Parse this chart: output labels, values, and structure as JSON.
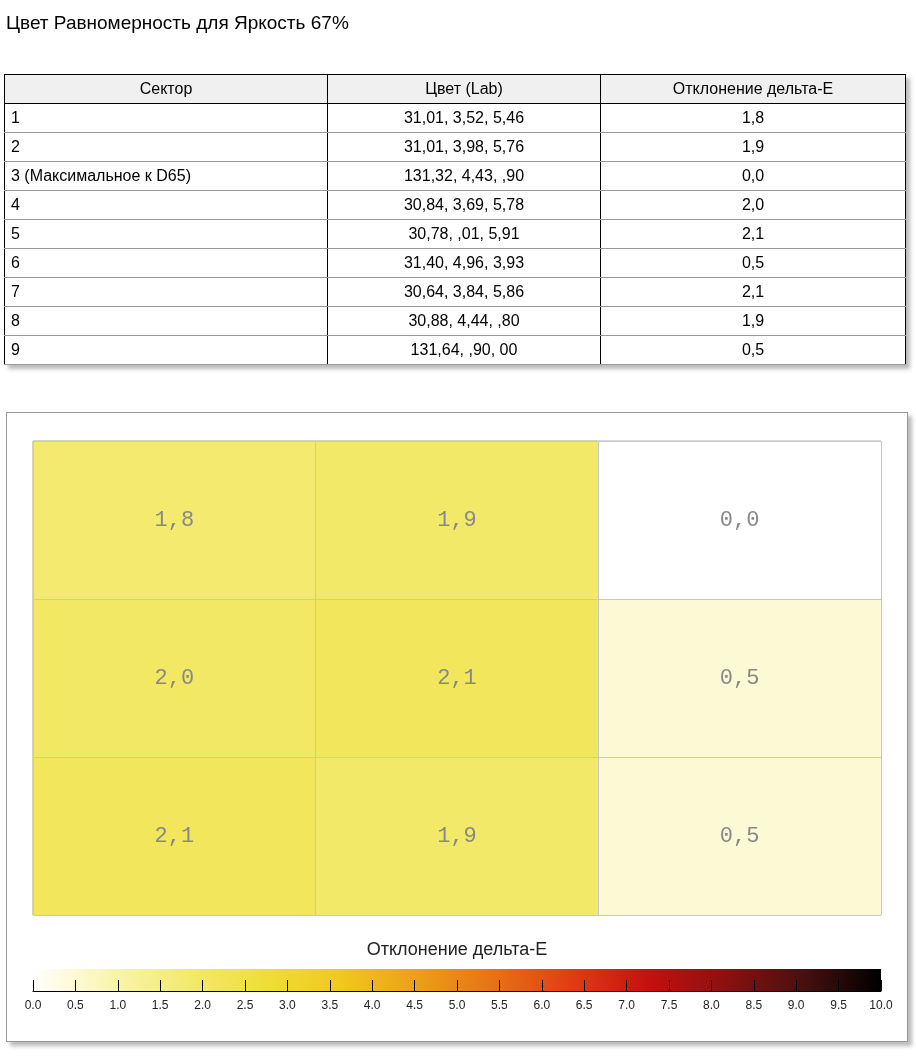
{
  "chart_data": [
    {
      "type": "other",
      "title": "Цвет Равномерность для Яркость 67%",
      "annotations": [
        "Сектор",
        "Цвет (Lab)",
        "Отклонение дельта-E",
        "1",
        "31,01, 3,52, 5,46",
        "1,8",
        "2",
        "31,01, 3,98, 5,76",
        "1,9",
        "3 (Максимальное к D65)",
        "131,32, 4,43, ,90",
        "0,0",
        "4",
        "30,84, 3,69, 5,78",
        "2,0",
        "5",
        "30,78, ,01, 5,91",
        "2,1",
        "6",
        "31,40, 4,96, 3,93",
        "0,5",
        "7",
        "30,64, 3,84, 5,86",
        "2,1",
        "8",
        "30,88, 4,44, ,80",
        "1,9",
        "9",
        "131,64, ,90, 00",
        "0,5"
      ]
    },
    {
      "type": "heatmap",
      "clabel": "Отклонение дельта-E",
      "categories": [
        null,
        null,
        null
      ],
      "y_categories": [
        null,
        null,
        null
      ],
      "cells": [
        [
          1.8,
          1.9,
          0.0
        ],
        [
          2.0,
          2.1,
          0.5
        ],
        [
          2.1,
          1.9,
          0.5
        ]
      ],
      "cell_labels": [
        [
          "1,8",
          "1,9",
          "0,0"
        ],
        [
          "2,0",
          "2,1",
          "0,5"
        ],
        [
          "2,1",
          "1,9",
          "0,5"
        ]
      ],
      "clim": [
        0,
        10
      ],
      "cticks": [
        {
          "value": 0,
          "label": "0.0"
        },
        {
          "value": 0.5,
          "label": "0.5"
        },
        {
          "value": 1,
          "label": "1.0"
        },
        {
          "value": 1.5,
          "label": "1.5"
        },
        {
          "value": 2,
          "label": "2.0"
        },
        {
          "value": 2.5,
          "label": "2.5"
        },
        {
          "value": 3,
          "label": "3.0"
        },
        {
          "value": 3.5,
          "label": "3.5"
        },
        {
          "value": 4,
          "label": "4.0"
        },
        {
          "value": 4.5,
          "label": "4.5"
        },
        {
          "value": 5,
          "label": "5.0"
        },
        {
          "value": 5.5,
          "label": "5.5"
        },
        {
          "value": 6,
          "label": "6.0"
        },
        {
          "value": 6.5,
          "label": "6.5"
        },
        {
          "value": 7,
          "label": "7.0"
        },
        {
          "value": 7.5,
          "label": "7.5"
        },
        {
          "value": 8,
          "label": "8.0"
        },
        {
          "value": 8.5,
          "label": "8.5"
        },
        {
          "value": 9,
          "label": "9.0"
        },
        {
          "value": 9.5,
          "label": "9.5"
        },
        {
          "value": 10,
          "label": "10.0"
        }
      ],
      "grid": true,
      "tick_labels": false
    }
  ]
}
